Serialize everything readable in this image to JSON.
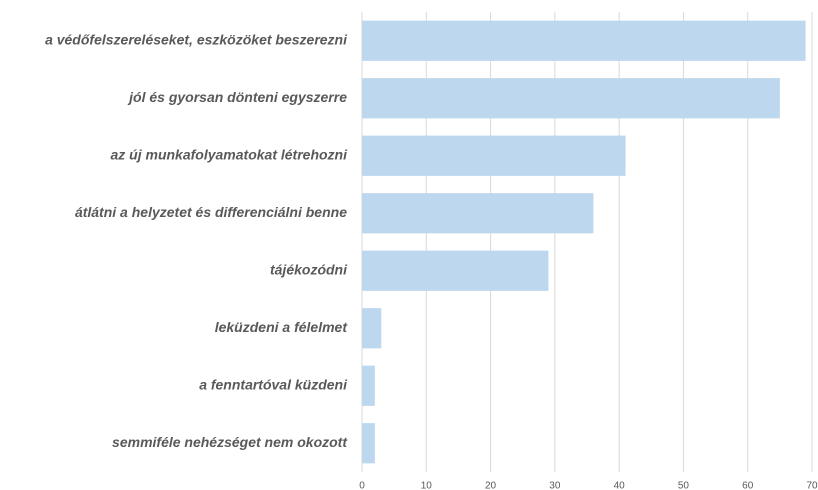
{
  "chart_data": {
    "type": "bar",
    "orientation": "horizontal",
    "categories": [
      "a védőfelszereléseket, eszközöket beszerezni",
      "jól és gyorsan dönteni egyszerre",
      "az új munkafolyamatokat létrehozni",
      "átlátni a helyzetet és differenciálni benne",
      "tájékozódni",
      "leküzdeni a félelmet",
      "a fenntartóval küzdeni",
      "semmiféle nehézséget nem okozott"
    ],
    "values": [
      69,
      65,
      41,
      36,
      29,
      3,
      2,
      2
    ],
    "color": "#bdd7ee",
    "xlim": [
      0,
      70
    ],
    "xticks": [
      0,
      10,
      20,
      30,
      40,
      50,
      60,
      70
    ],
    "grid": true
  }
}
